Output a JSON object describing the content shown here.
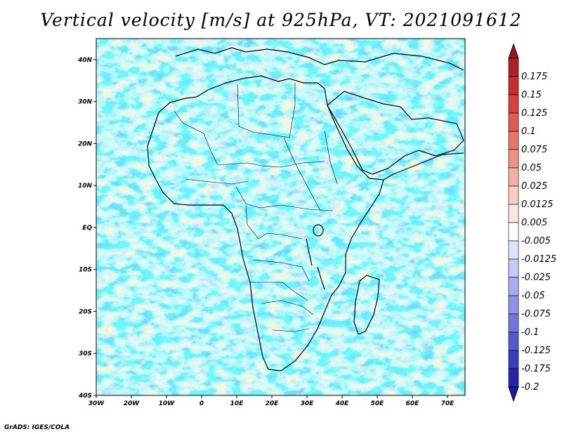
{
  "title": "Vertical velocity [m/s] at 925hPa, VT: 2021091612",
  "credit": "GrADS: IGES/COLA",
  "map": {
    "lon_range": [
      -30,
      75
    ],
    "lat_range": [
      -40,
      45
    ],
    "lon_ticks": [
      {
        "value": -30,
        "label": "30W"
      },
      {
        "value": -20,
        "label": "20W"
      },
      {
        "value": -10,
        "label": "10W"
      },
      {
        "value": 0,
        "label": "0"
      },
      {
        "value": 10,
        "label": "10E"
      },
      {
        "value": 20,
        "label": "20E"
      },
      {
        "value": 30,
        "label": "30E"
      },
      {
        "value": 40,
        "label": "40E"
      },
      {
        "value": 50,
        "label": "50E"
      },
      {
        "value": 60,
        "label": "60E"
      },
      {
        "value": 70,
        "label": "70E"
      }
    ],
    "lat_ticks": [
      {
        "value": 40,
        "label": "40N"
      },
      {
        "value": 30,
        "label": "30N"
      },
      {
        "value": 20,
        "label": "20N"
      },
      {
        "value": 10,
        "label": "10N"
      },
      {
        "value": 0,
        "label": "EQ"
      },
      {
        "value": -10,
        "label": "10S"
      },
      {
        "value": -20,
        "label": "20S"
      },
      {
        "value": -30,
        "label": "30S"
      },
      {
        "value": -40,
        "label": "40S"
      }
    ]
  },
  "colorbar": {
    "levels": [
      {
        "label": "0.175",
        "color": "#b01e28"
      },
      {
        "label": "0.15",
        "color": "#c42e32"
      },
      {
        "label": "0.125",
        "color": "#d6423e"
      },
      {
        "label": "0.1",
        "color": "#e05a52"
      },
      {
        "label": "0.075",
        "color": "#e77669"
      },
      {
        "label": "0.05",
        "color": "#ee9387"
      },
      {
        "label": "0.025",
        "color": "#f4b0a6"
      },
      {
        "label": "0.0125",
        "color": "#f9ccc4"
      },
      {
        "label": "0.005",
        "color": "#fce6e2"
      },
      {
        "label": "-0.005",
        "color": "#ffffff"
      },
      {
        "label": "-0.0125",
        "color": "#e0e2fb"
      },
      {
        "label": "-0.025",
        "color": "#c6c9f5"
      },
      {
        "label": "-0.05",
        "color": "#aaaeee"
      },
      {
        "label": "-0.075",
        "color": "#8e92e6"
      },
      {
        "label": "-0.1",
        "color": "#7276dc"
      },
      {
        "label": "-0.125",
        "color": "#5559cf"
      },
      {
        "label": "-0.175",
        "color": "#393cbf"
      },
      {
        "label": "-0.2",
        "color": "#2424ad"
      }
    ],
    "top_color": "#a0141e",
    "bottom_color": "#1a1a9e"
  }
}
